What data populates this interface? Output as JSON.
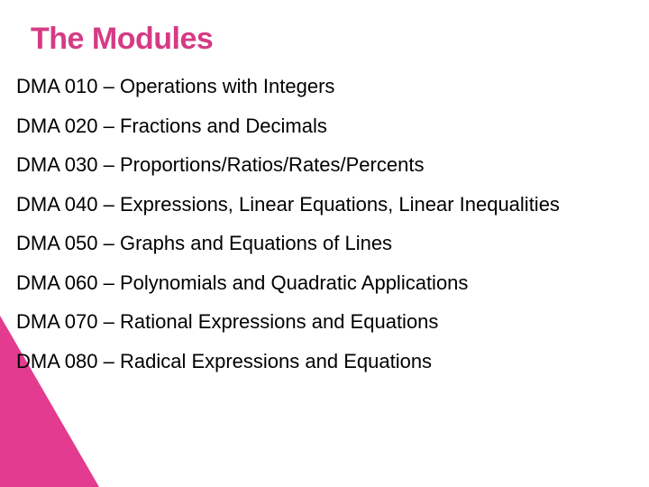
{
  "slide": {
    "title": "The Modules",
    "title_color": "#d53b84",
    "title_fontsize": 34,
    "body_fontsize": 22,
    "body_color": "#000000",
    "background_color": "#ffffff",
    "corner_triangle_color": "#e23b8f",
    "separator": " – ",
    "modules": [
      {
        "code": "DMA 010",
        "desc": "Operations with Integers"
      },
      {
        "code": "DMA 020",
        "desc": "Fractions and Decimals"
      },
      {
        "code": "DMA 030",
        "desc": "Proportions/Ratios/Rates/Percents"
      },
      {
        "code": "DMA 040",
        "desc": "Expressions, Linear Equations, Linear Inequalities"
      },
      {
        "code": "DMA 050",
        "desc": "Graphs and Equations of Lines"
      },
      {
        "code": "DMA 060",
        "desc": "Polynomials and Quadratic Applications"
      },
      {
        "code": "DMA 070",
        "desc": "Rational Expressions and Equations"
      },
      {
        "code": "DMA 080",
        "desc": "Radical Expressions and Equations"
      }
    ]
  }
}
